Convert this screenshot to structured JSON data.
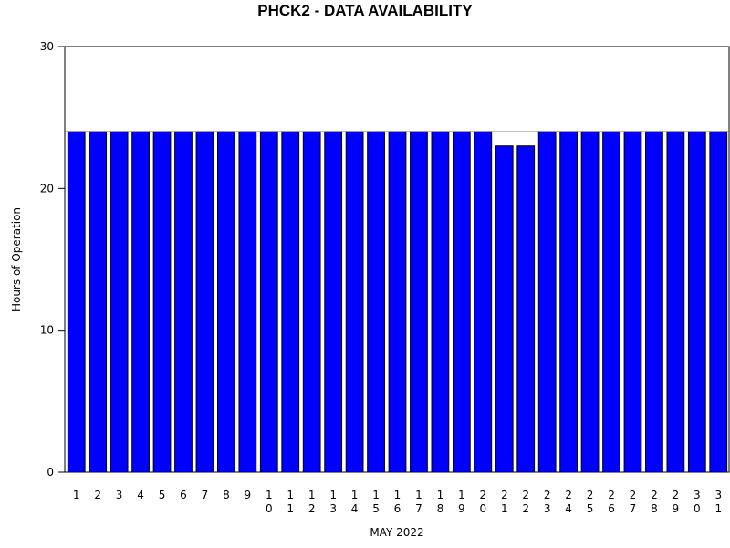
{
  "chart_data": {
    "type": "bar",
    "title": "PHCK2 - DATA AVAILABILITY",
    "xlabel": "MAY 2022",
    "ylabel": "Hours of Operation",
    "categories": [
      "1",
      "2",
      "3",
      "4",
      "5",
      "6",
      "7",
      "8",
      "9",
      "10",
      "11",
      "12",
      "13",
      "14",
      "15",
      "16",
      "17",
      "18",
      "19",
      "20",
      "21",
      "22",
      "23",
      "24",
      "25",
      "26",
      "27",
      "28",
      "29",
      "30",
      "31"
    ],
    "values": [
      24,
      24,
      24,
      24,
      24,
      24,
      24,
      24,
      24,
      24,
      24,
      24,
      24,
      24,
      24,
      24,
      24,
      24,
      24,
      24,
      23,
      23,
      24,
      24,
      24,
      24,
      24,
      24,
      24,
      24,
      24
    ],
    "reference_line": 24,
    "ylim": [
      0,
      30
    ],
    "yticks": [
      0,
      10,
      20,
      30
    ],
    "bar_color": "#0000ff",
    "grid": false,
    "legend": "none"
  }
}
